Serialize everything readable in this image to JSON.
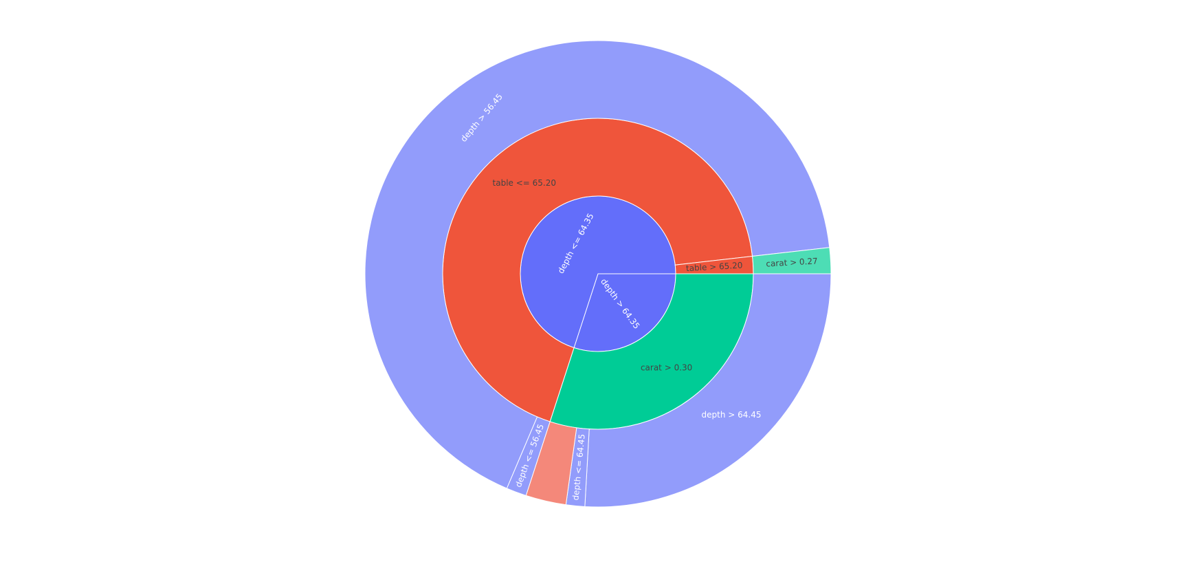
{
  "chart_data": {
    "type": "sunburst",
    "title": "",
    "colors": {
      "root": "#636efa",
      "level2_red": "#ef553b",
      "level2_green": "#00cc96",
      "outer_purple": "#929cfb",
      "outer_green": "#4dddb5",
      "outer_red": "#f4887a"
    },
    "nodes": [
      {
        "id": "d1",
        "label": "depth <= 64.35",
        "parent": "",
        "value": 0.7
      },
      {
        "id": "d2",
        "label": "depth > 64.35",
        "parent": "",
        "value": 0.3
      },
      {
        "id": "t1",
        "label": "table <= 65.20",
        "parent": "d1",
        "value": 0.682
      },
      {
        "id": "t2",
        "label": "table > 65.20",
        "parent": "d1",
        "value": 0.018
      },
      {
        "id": "c1",
        "label": "carat > 0.30",
        "parent": "d2",
        "value": 0.3
      },
      {
        "id": "o1",
        "label": "depth <= 56.45",
        "parent": "t1",
        "value": 0.014
      },
      {
        "id": "o2",
        "label": "depth > 56.45",
        "parent": "t1",
        "value": 0.668
      },
      {
        "id": "o3",
        "label": "carat > 0.27",
        "parent": "t2",
        "value": 0.018
      },
      {
        "id": "o4",
        "label": "depth > 64.45",
        "parent": "c1",
        "value": 0.259
      },
      {
        "id": "o5",
        "label": "depth <= 64.45",
        "parent": "c1",
        "value": 0.013
      },
      {
        "id": "o6",
        "label": "",
        "parent": "c1",
        "value": 0.028
      }
    ]
  }
}
